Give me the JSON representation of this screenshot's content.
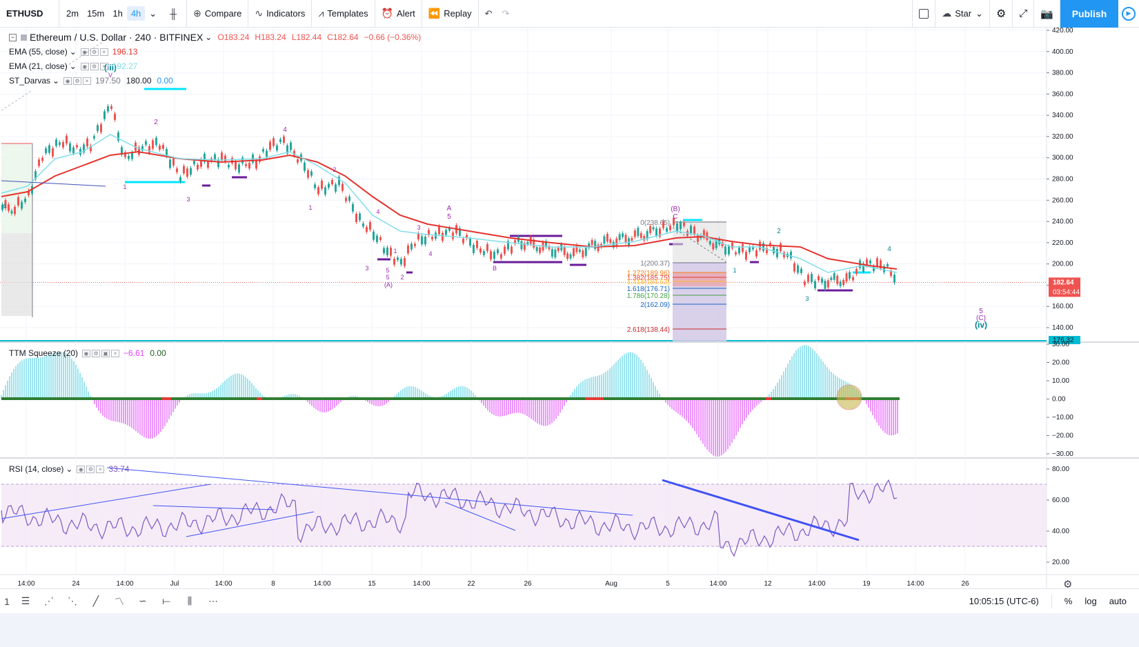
{
  "toolbar": {
    "symbol": "ETHUSD",
    "intervals": [
      "2m",
      "15m",
      "1h",
      "4h"
    ],
    "active_interval": "4h",
    "compare": "Compare",
    "indicators": "Indicators",
    "templates": "Templates",
    "alert": "Alert",
    "replay": "Replay",
    "star": "Star",
    "publish": "Publish"
  },
  "main_legend": {
    "title": "Ethereum / U.S. Dollar · 240 · BITFINEX",
    "open": "O183.24",
    "high": "H183.24",
    "low": "L182.44",
    "close": "C182.64",
    "change": "−0.66 (−0.36%)",
    "ema55_label": "EMA (55, close)",
    "ema55_value": "196.13",
    "ema21_label": "EMA (21, close)",
    "ema21_value": "192.27",
    "darvas_label": "ST_Darvas",
    "darvas_values": [
      "197.50",
      "180.00",
      "0.00"
    ]
  },
  "price_axis": {
    "labels": [
      "420.00",
      "400.00",
      "380.00",
      "360.00",
      "340.00",
      "320.00",
      "300.00",
      "280.00",
      "260.00",
      "240.00",
      "220.00",
      "200.00",
      "180.00",
      "160.00",
      "140.00"
    ],
    "last_price": "182.64",
    "countdown": "03:54:44",
    "line_value": "176.32"
  },
  "fib": {
    "top": "0(238.65)",
    "one": "1(200.37)",
    "l1272": "1.272(189.96)",
    "l1382": "1.382(185.75)",
    "l1414": "1.414(184.53)",
    "l1618": "1.618(176.71)",
    "l1786": "1.786(170.28)",
    "l2": "2(162.09)",
    "l2618": "2.618(138.44)"
  },
  "ttm": {
    "label": "TTM Squeeze (20)",
    "v1": "−6.61",
    "v2": "0.00",
    "axis": [
      "30.00",
      "20.00",
      "10.00",
      "0.00",
      "−10.00",
      "−20.00",
      "−30.00"
    ]
  },
  "rsi": {
    "label": "RSI (14, close)",
    "value": "33.74",
    "axis": [
      "80.00",
      "60.00",
      "40.00",
      "20.00"
    ]
  },
  "time_axis": [
    "14:00",
    "24",
    "14:00",
    "Jul",
    "14:00",
    "8",
    "14:00",
    "15",
    "14:00",
    "22",
    "26",
    "Aug",
    "5",
    "14:00",
    "12",
    "14:00",
    "19",
    "14:00",
    "26"
  ],
  "bottom": {
    "time": "10:05:15 (UTC-6)",
    "percent": "%",
    "log": "log",
    "auto": "auto",
    "first_tool": "1"
  },
  "colors": {
    "ema55": "#e5322d",
    "ema21": "#80deea",
    "up": "#26a69a",
    "down": "#ef5350",
    "wave": "#9c27b0",
    "darvas_cyan": "#00e5ff",
    "darvas_purple": "#6a1b9a",
    "rsi_line": "#7e57c2",
    "trend": "#3f51f5"
  }
}
